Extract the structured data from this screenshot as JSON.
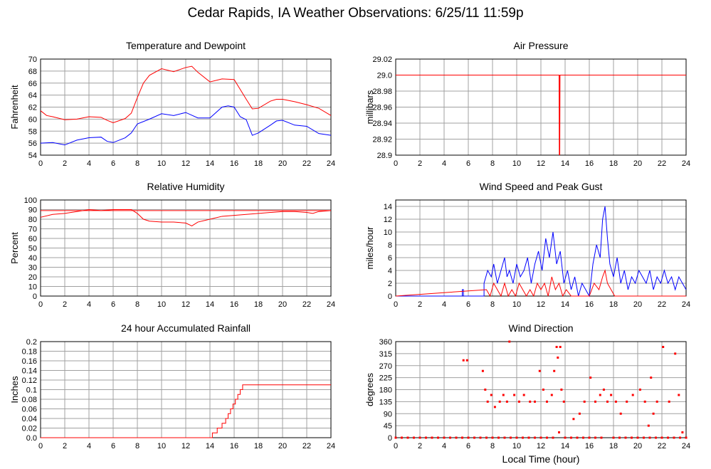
{
  "page_title": "Cedar Rapids, IA Weather Observations: 6/25/11 11:59p",
  "colors": {
    "temperature": "#ff0000",
    "dewpoint": "#0000ff",
    "grid": "#a0a0a0",
    "axis": "#000000"
  },
  "chart_data": [
    {
      "id": "temp",
      "type": "line",
      "title": "Temperature and Dewpoint",
      "xlabel": "",
      "ylabel": "Fahrenheit",
      "xlim": [
        0,
        24
      ],
      "ylim": [
        54,
        70
      ],
      "xticks": [
        0,
        2,
        4,
        6,
        8,
        10,
        12,
        14,
        16,
        18,
        20,
        22,
        24
      ],
      "yticks": [
        54,
        56,
        58,
        60,
        62,
        64,
        66,
        68,
        70
      ],
      "grid": true,
      "series": [
        {
          "color": "#ff0000",
          "x": [
            0,
            0.5,
            1,
            2,
            3,
            4,
            5,
            5.5,
            6,
            7,
            7.5,
            8,
            8.5,
            9,
            10,
            11,
            12,
            12.5,
            13,
            14,
            15,
            16,
            17,
            17.5,
            18,
            19,
            19.5,
            20,
            21,
            22,
            23,
            24
          ],
          "y": [
            61.4,
            60.6,
            60.4,
            59.9,
            60.0,
            60.4,
            60.3,
            59.8,
            59.4,
            60.1,
            61.0,
            63.6,
            66.0,
            67.3,
            68.4,
            67.9,
            68.6,
            68.8,
            67.8,
            66.2,
            66.7,
            66.6,
            63.3,
            61.7,
            61.8,
            63.0,
            63.3,
            63.3,
            62.9,
            62.4,
            61.8,
            60.6
          ]
        },
        {
          "color": "#0000ff",
          "x": [
            0,
            1,
            2,
            3,
            4,
            5,
            5.5,
            6,
            7,
            7.5,
            8,
            9,
            10,
            11,
            12,
            13,
            14,
            15,
            15.5,
            16,
            16.5,
            17,
            17.5,
            18,
            19,
            19.5,
            20,
            21,
            22,
            23,
            24
          ],
          "y": [
            56.0,
            56.1,
            55.7,
            56.5,
            56.9,
            57.0,
            56.3,
            56.1,
            56.9,
            57.7,
            59.2,
            60.0,
            60.9,
            60.6,
            61.1,
            60.2,
            60.2,
            62.0,
            62.2,
            62.0,
            60.4,
            59.9,
            57.3,
            57.7,
            59.0,
            59.7,
            59.8,
            59.0,
            58.8,
            57.6,
            57.3
          ]
        }
      ]
    },
    {
      "id": "pressure",
      "type": "line",
      "title": "Air Pressure",
      "xlabel": "",
      "ylabel": "millibars",
      "xlim": [
        0,
        24
      ],
      "ylim": [
        28.9,
        29.02
      ],
      "xticks": [
        0,
        2,
        4,
        6,
        8,
        10,
        12,
        14,
        16,
        18,
        20,
        22,
        24
      ],
      "yticks": [
        28.9,
        28.92,
        28.94,
        28.96,
        28.98,
        29.0,
        29.02
      ],
      "ytick_labels": [
        "28.9",
        "28.92",
        "28.94",
        "28.96",
        "28.98",
        "29.0",
        "29.02"
      ],
      "grid": true,
      "series": [
        {
          "color": "#ff0000",
          "x": [
            0,
            13.5,
            13.52,
            13.54,
            13.56,
            13.58,
            24
          ],
          "y": [
            29.0,
            29.0,
            28.9,
            29.0,
            28.9,
            29.0,
            29.0
          ]
        }
      ]
    },
    {
      "id": "rh",
      "type": "line",
      "title": "Relative Humidity",
      "xlabel": "",
      "ylabel": "Percent",
      "xlim": [
        0,
        24
      ],
      "ylim": [
        0,
        100
      ],
      "xticks": [
        0,
        2,
        4,
        6,
        8,
        10,
        12,
        14,
        16,
        18,
        20,
        22,
        24
      ],
      "yticks": [
        0,
        10,
        20,
        30,
        40,
        50,
        60,
        70,
        80,
        90,
        100
      ],
      "grid": true,
      "series": [
        {
          "color": "#ff0000",
          "x": [
            0,
            1,
            2,
            3,
            4,
            5,
            6,
            7,
            7.5,
            8,
            8.5,
            9,
            10,
            11,
            12,
            12.5,
            13,
            14,
            15,
            16,
            17,
            18,
            19,
            20,
            21,
            22,
            22.5,
            23,
            24
          ],
          "y": [
            82,
            85,
            86,
            88,
            90,
            89,
            90,
            90,
            90,
            86,
            80,
            78,
            77,
            77,
            76,
            73,
            77,
            80,
            83,
            84,
            85,
            86,
            87,
            88,
            88,
            87,
            86,
            88,
            89
          ]
        },
        {
          "color": "#ff0000",
          "x": [
            0,
            24
          ],
          "y": [
            89,
            89
          ]
        }
      ]
    },
    {
      "id": "wind",
      "type": "line",
      "title": "Wind Speed and Peak Gust",
      "xlabel": "",
      "ylabel": "miles/hour",
      "xlim": [
        0,
        24
      ],
      "ylim": [
        0,
        15
      ],
      "xticks": [
        0,
        2,
        4,
        6,
        8,
        10,
        12,
        14,
        16,
        18,
        20,
        22,
        24
      ],
      "yticks": [
        0,
        2,
        4,
        6,
        8,
        10,
        12,
        14
      ],
      "grid": true,
      "series": [
        {
          "color": "#0000ff",
          "x": [
            0,
            5.5,
            5.5,
            5.6,
            5.6,
            7.3,
            7.3,
            7.6,
            7.9,
            8.1,
            8.4,
            8.7,
            9.0,
            9.2,
            9.4,
            9.7,
            10.0,
            10.3,
            10.6,
            10.9,
            11.2,
            11.5,
            11.8,
            12.1,
            12.4,
            12.7,
            13.0,
            13.3,
            13.6,
            13.9,
            14.2,
            14.5,
            14.8,
            15.1,
            15.4,
            15.7,
            16.0,
            16.3,
            16.6,
            16.9,
            17.1,
            17.3,
            17.5,
            17.7,
            18.0,
            18.3,
            18.6,
            18.9,
            19.2,
            19.5,
            19.8,
            20.1,
            20.4,
            20.7,
            21.0,
            21.3,
            21.6,
            21.9,
            22.2,
            22.5,
            22.8,
            23.1,
            23.4,
            23.7,
            24
          ],
          "y": [
            0,
            0,
            1,
            1,
            0,
            0,
            2,
            4,
            3,
            5,
            2,
            4,
            6,
            3,
            4,
            2,
            5,
            3,
            4,
            6,
            2,
            5,
            7,
            4,
            9,
            6,
            10,
            5,
            7,
            2,
            4,
            1,
            3,
            0,
            2,
            1,
            0,
            5,
            8,
            6,
            12,
            14,
            9,
            5,
            3,
            6,
            2,
            4,
            1,
            3,
            2,
            4,
            3,
            2,
            4,
            1,
            3,
            2,
            4,
            2,
            3,
            1,
            3,
            2,
            1
          ]
        },
        {
          "color": "#ff0000",
          "x": [
            0,
            7.5,
            7.8,
            8.1,
            8.4,
            8.7,
            9.0,
            9.3,
            9.6,
            9.9,
            10.2,
            10.5,
            10.8,
            11.1,
            11.4,
            11.7,
            12.0,
            12.3,
            12.6,
            12.9,
            13.2,
            13.5,
            13.8,
            14.1,
            14.5,
            15.0,
            15.5,
            16.0,
            16.4,
            16.8,
            17.1,
            17.3,
            17.5,
            17.8,
            18.1,
            18.5,
            19.0,
            24
          ],
          "y": [
            0,
            1,
            0,
            2,
            1,
            0,
            2,
            0,
            1,
            0,
            2,
            1,
            0,
            1,
            0,
            2,
            1,
            2,
            0,
            3,
            1,
            2,
            0,
            1,
            0,
            0,
            0,
            0,
            2,
            1,
            3,
            4,
            2,
            1,
            0,
            0,
            0,
            0
          ]
        }
      ]
    },
    {
      "id": "rain",
      "type": "line",
      "title": "24 hour Accumulated Rainfall",
      "xlabel": "",
      "ylabel": "Inches",
      "xlim": [
        0,
        24
      ],
      "ylim": [
        0,
        0.2
      ],
      "xticks": [
        0,
        2,
        4,
        6,
        8,
        10,
        12,
        14,
        16,
        18,
        20,
        22,
        24
      ],
      "yticks": [
        0,
        0.02,
        0.04,
        0.06,
        0.08,
        0.1,
        0.12,
        0.14,
        0.16,
        0.18,
        0.2
      ],
      "ytick_labels": [
        "0.0",
        "0.02",
        "0.04",
        "0.06",
        "0.08",
        "0.1",
        "0.12",
        "0.14",
        "0.16",
        "0.18",
        "0.2"
      ],
      "grid": true,
      "series": [
        {
          "color": "#ff0000",
          "x": [
            0,
            14.2,
            14.2,
            14.6,
            14.6,
            15.0,
            15.0,
            15.3,
            15.3,
            15.5,
            15.5,
            15.7,
            15.7,
            15.9,
            15.9,
            16.1,
            16.1,
            16.3,
            16.3,
            16.5,
            16.5,
            16.7,
            16.7,
            24
          ],
          "y": [
            0,
            0,
            0.01,
            0.01,
            0.02,
            0.02,
            0.03,
            0.03,
            0.04,
            0.04,
            0.05,
            0.05,
            0.06,
            0.06,
            0.07,
            0.07,
            0.08,
            0.08,
            0.09,
            0.09,
            0.1,
            0.1,
            0.11,
            0.11
          ]
        }
      ]
    },
    {
      "id": "dir",
      "type": "scatter",
      "title": "Wind Direction",
      "xlabel": "Local Time (hour)",
      "ylabel": "degrees",
      "xlim": [
        0,
        24
      ],
      "ylim": [
        0,
        360
      ],
      "xticks": [
        0,
        2,
        4,
        6,
        8,
        10,
        12,
        14,
        16,
        18,
        20,
        22,
        24
      ],
      "yticks": [
        0,
        45,
        90,
        135,
        180,
        225,
        270,
        315,
        360
      ],
      "grid": true,
      "series": [
        {
          "color": "#ff0000",
          "x": [
            5.6,
            5.9,
            7.2,
            7.4,
            7.6,
            7.9,
            8.2,
            8.6,
            8.9,
            9.2,
            9.4,
            9.8,
            10.2,
            10.6,
            11.1,
            11.5,
            11.9,
            12.2,
            12.5,
            12.9,
            13.1,
            13.3,
            13.5,
            13.7,
            13.4,
            13.6,
            13.9,
            14.7,
            15.2,
            15.6,
            16.1,
            16.5,
            16.9,
            17.2,
            17.5,
            17.8,
            18.2,
            18.6,
            19.1,
            19.6,
            20.2,
            20.6,
            20.9,
            21.1,
            21.3,
            21.6,
            22.1,
            22.6,
            23.1,
            23.4,
            23.7
          ],
          "y": [
            290,
            290,
            250,
            180,
            135,
            160,
            115,
            135,
            160,
            135,
            360,
            160,
            135,
            160,
            135,
            135,
            250,
            180,
            135,
            160,
            250,
            340,
            20,
            180,
            300,
            340,
            135,
            70,
            90,
            135,
            225,
            135,
            160,
            180,
            135,
            160,
            135,
            90,
            135,
            160,
            180,
            135,
            45,
            225,
            90,
            135,
            340,
            135,
            315,
            160,
            20
          ]
        },
        {
          "color": "#ff0000",
          "x": [
            0,
            0.5,
            1,
            1.5,
            2,
            2.5,
            3,
            3.5,
            4,
            4.5,
            5,
            5.5,
            6,
            6.5,
            7,
            7.5,
            8,
            8.5,
            9,
            9.5,
            10,
            10.5,
            11,
            11.5,
            12,
            12.5,
            13,
            14,
            14.5,
            15,
            15.5,
            16,
            16.5,
            17,
            18,
            18.5,
            19,
            19.5,
            20,
            20.5,
            21,
            21.5,
            22,
            22.5,
            23,
            23.5,
            24
          ],
          "y": [
            0,
            0,
            0,
            0,
            0,
            0,
            0,
            0,
            0,
            0,
            0,
            0,
            0,
            0,
            0,
            0,
            0,
            0,
            0,
            0,
            0,
            0,
            0,
            0,
            0,
            0,
            0,
            0,
            0,
            0,
            0,
            0,
            0,
            0,
            0,
            0,
            0,
            0,
            0,
            0,
            0,
            0,
            0,
            0,
            0,
            0,
            0
          ]
        }
      ]
    }
  ]
}
